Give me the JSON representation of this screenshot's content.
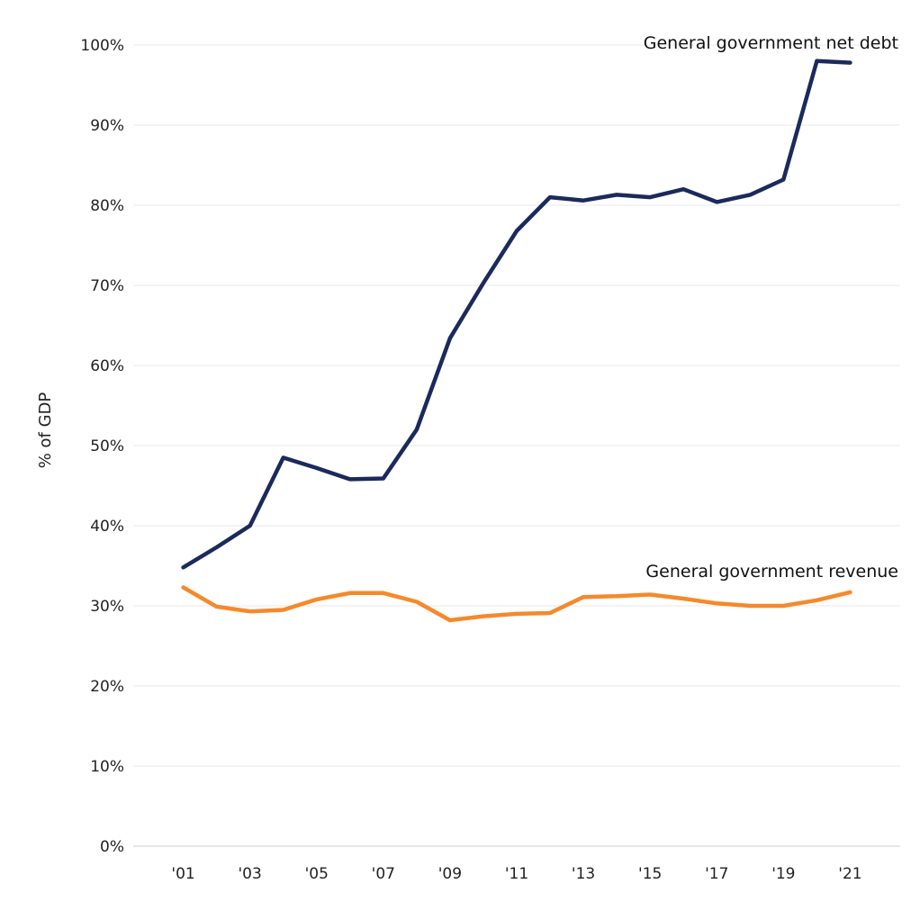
{
  "chart_data": {
    "type": "line",
    "ylabel": "% of GDP",
    "xlabel": "",
    "x": [
      2001,
      2002,
      2003,
      2004,
      2005,
      2006,
      2007,
      2008,
      2009,
      2010,
      2011,
      2012,
      2013,
      2014,
      2015,
      2016,
      2017,
      2018,
      2019,
      2020,
      2021
    ],
    "xlim": [
      1999.5,
      2022.5
    ],
    "x_tick_values": [
      2001,
      2003,
      2005,
      2007,
      2009,
      2011,
      2013,
      2015,
      2017,
      2019,
      2021
    ],
    "x_tick_labels": [
      "'01",
      "'03",
      "'05",
      "'07",
      "'09",
      "'11",
      "'13",
      "'15",
      "'17",
      "'19",
      "'21"
    ],
    "ylim": [
      0,
      100
    ],
    "y_tick_values": [
      0,
      10,
      20,
      30,
      40,
      50,
      60,
      70,
      80,
      90,
      100
    ],
    "y_tick_labels": [
      "0%",
      "10%",
      "20%",
      "30%",
      "40%",
      "50%",
      "60%",
      "70%",
      "80%",
      "90%",
      "100%"
    ],
    "grid": true,
    "series": [
      {
        "name": "General government net debt",
        "color": "#1b2a5c",
        "values": [
          34.8,
          37.3,
          40.0,
          48.5,
          47.2,
          45.8,
          45.9,
          52.0,
          63.4,
          70.3,
          76.8,
          81.0,
          80.6,
          81.3,
          81.0,
          82.0,
          80.4,
          81.3,
          83.2,
          98.0,
          97.8
        ]
      },
      {
        "name": "General government revenue",
        "color": "#f5892b",
        "values": [
          32.3,
          29.9,
          29.3,
          29.5,
          30.8,
          31.6,
          31.6,
          30.5,
          28.2,
          28.7,
          29.0,
          29.1,
          31.1,
          31.2,
          31.4,
          30.9,
          30.3,
          30.0,
          30.0,
          30.7,
          31.7
        ]
      }
    ]
  }
}
